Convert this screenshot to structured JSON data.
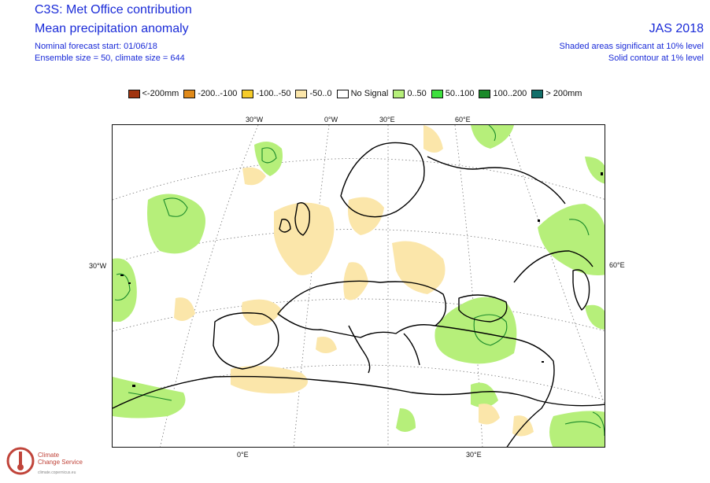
{
  "header": {
    "title1": "C3S: Met Office contribution",
    "title2": "Mean precipitation anomaly",
    "start": "Nominal forecast start: 01/06/18",
    "ensemble": "Ensemble size = 50, climate size = 644",
    "season": "JAS 2018",
    "sig10": "Shaded areas significant at 10% level",
    "sig1": "Solid contour at 1% level"
  },
  "legend": [
    {
      "label": "<-200mm",
      "color": "#a0340f"
    },
    {
      "label": "-200..-100",
      "color": "#e08a1a"
    },
    {
      "label": "-100..-50",
      "color": "#f6cc2a"
    },
    {
      "label": "-50..0",
      "color": "#fbe6aa"
    },
    {
      "label": "No Signal",
      "color": "#ffffff"
    },
    {
      "label": "0..50",
      "color": "#b6ef7a"
    },
    {
      "label": "50..100",
      "color": "#3fe03f"
    },
    {
      "label": "100..200",
      "color": "#1b8a2a"
    },
    {
      "label": "> 200mm",
      "color": "#136f6a"
    }
  ],
  "map": {
    "lon_top": [
      "30°W",
      "0°W",
      "30°E",
      "60°E"
    ],
    "lon_bottom": [
      "0°E",
      "30°E"
    ],
    "lat_left": "30°W",
    "lat_right": "60°E"
  },
  "logo": {
    "line1": "Climate",
    "line2": "Change Service",
    "sub": "climate.copernicus.eu"
  },
  "colors": {
    "header_text": "#1a2bd8",
    "dry": "#fbe6aa",
    "wet": "#b6ef7a",
    "contour_green": "#1b8a2a"
  }
}
